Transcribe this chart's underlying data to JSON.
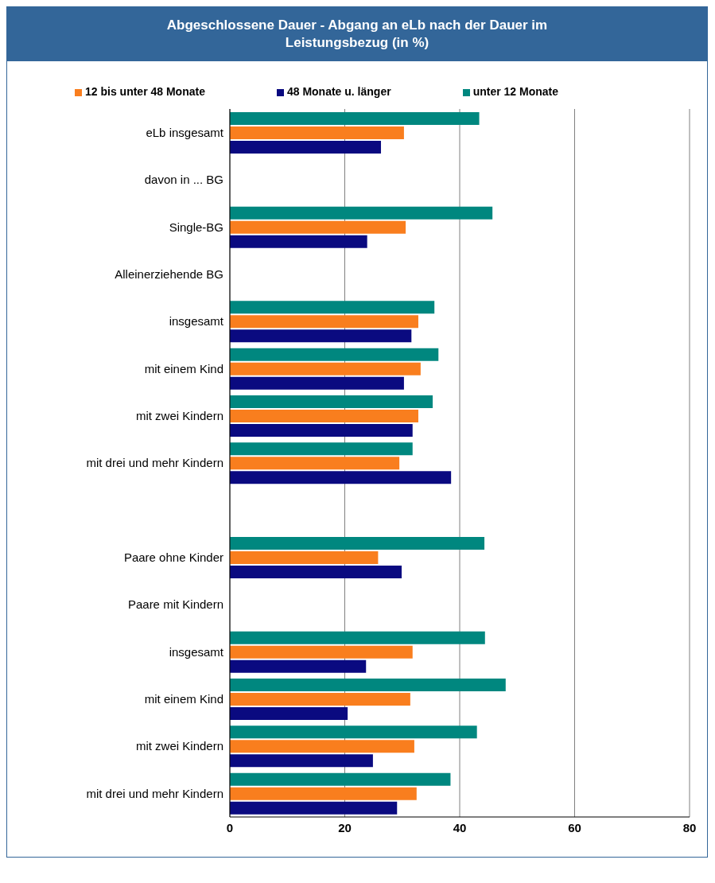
{
  "chart_data": {
    "type": "bar",
    "orientation": "horizontal",
    "title": "Abgeschlossene Dauer - Abgang an eLb nach der Dauer im Leistungsbezug (in %)",
    "categories": [
      "eLb insgesamt",
      "davon in ... BG",
      "Single-BG",
      "Alleinerziehende BG",
      "insgesamt",
      "mit einem Kind",
      "mit zwei Kindern",
      "mit drei und mehr Kindern",
      null,
      "Paare ohne Kinder",
      "Paare mit Kindern",
      "insgesamt",
      "mit einem Kind",
      "mit zwei Kindern",
      "mit drei und mehr Kindern"
    ],
    "series": [
      {
        "name": "unter 12 Monate",
        "color": "#00877f",
        "values": [
          43.4,
          null,
          45.7,
          null,
          35.6,
          36.3,
          35.3,
          31.8,
          null,
          44.3,
          null,
          44.4,
          48.0,
          43.0,
          38.4
        ]
      },
      {
        "name": "12 bis unter 48 Monate",
        "color": "#f97e1e",
        "values": [
          30.3,
          null,
          30.6,
          null,
          32.8,
          33.2,
          32.8,
          29.5,
          null,
          25.8,
          null,
          31.8,
          31.4,
          32.1,
          32.5
        ]
      },
      {
        "name": "48 Monate u. länger",
        "color": "#0a0a80",
        "values": [
          26.3,
          null,
          23.9,
          null,
          31.6,
          30.3,
          31.8,
          38.5,
          null,
          29.9,
          null,
          23.7,
          20.5,
          24.9,
          29.1
        ]
      }
    ],
    "xlim": [
      0,
      80
    ],
    "xticks": [
      0,
      20,
      40,
      60,
      80
    ],
    "grid": "x",
    "legend": "top"
  }
}
